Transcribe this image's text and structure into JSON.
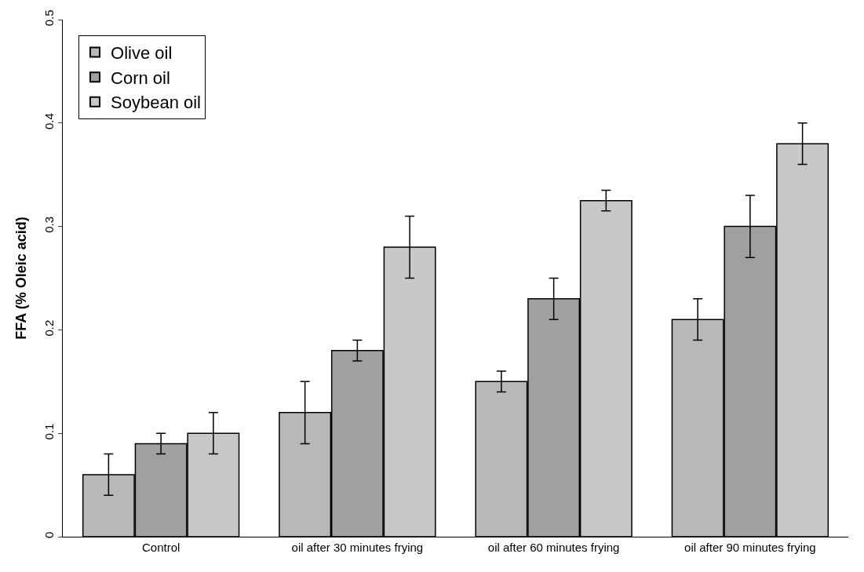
{
  "chart_data": {
    "type": "bar",
    "ylabel": "FFA (% Oleic acid)",
    "categories": [
      "Control",
      "oil after 30 minutes frying",
      "oil after 60 minutes frying",
      "oil after 90 minutes frying"
    ],
    "series": [
      {
        "name": "Olive oil",
        "color": "#b8b8b8",
        "values": [
          0.06,
          0.12,
          0.15,
          0.21
        ],
        "errors": [
          0.02,
          0.03,
          0.01,
          0.02
        ]
      },
      {
        "name": "Corn oil",
        "color": "#a0a0a0",
        "values": [
          0.09,
          0.18,
          0.23,
          0.3
        ],
        "errors": [
          0.01,
          0.01,
          0.02,
          0.03
        ]
      },
      {
        "name": "Soybean oil",
        "color": "#c8c8c8",
        "values": [
          0.1,
          0.28,
          0.325,
          0.38
        ],
        "errors": [
          0.02,
          0.03,
          0.01,
          0.02
        ]
      }
    ],
    "ylim": [
      0,
      0.5
    ],
    "yticks": [
      {
        "value": 0,
        "label": "0"
      },
      0.1,
      0.2,
      0.3,
      0.4,
      0.5
    ],
    "legend": "top left"
  }
}
